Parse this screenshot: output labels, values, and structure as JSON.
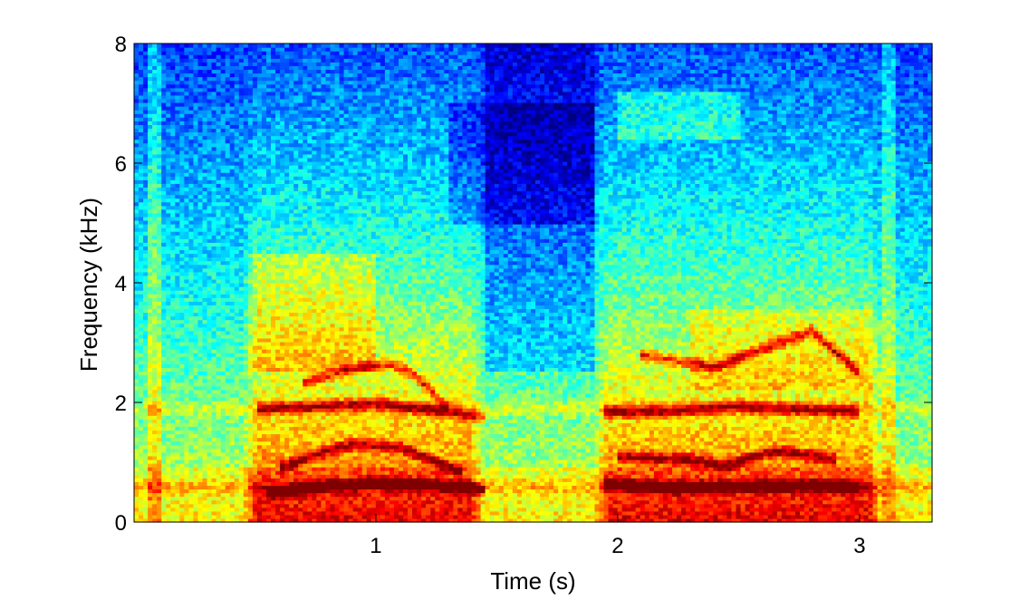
{
  "chart_data": {
    "type": "heatmap",
    "title": "",
    "xlabel": "Time (s)",
    "ylabel": "Frequency (kHz)",
    "xlim": [
      0,
      3.3
    ],
    "ylim": [
      0,
      8
    ],
    "x_ticks": [
      1,
      2,
      3
    ],
    "x_tick_labels": [
      "1",
      "2",
      "3"
    ],
    "y_ticks": [
      0,
      2,
      4,
      6,
      8
    ],
    "y_tick_labels": [
      "0",
      "2",
      "4",
      "6",
      "8"
    ],
    "colormap": "jet",
    "grid": false,
    "legend": "none",
    "voiced_segments_s": [
      [
        0.45,
        1.45
      ],
      [
        1.9,
        3.1
      ]
    ],
    "harmonic_tracks": [
      {
        "segment": 1,
        "points": [
          [
            0.55,
            0.48
          ],
          [
            0.8,
            0.6
          ],
          [
            1.0,
            0.68
          ],
          [
            1.2,
            0.64
          ],
          [
            1.45,
            0.55
          ]
        ]
      },
      {
        "segment": 1,
        "points": [
          [
            0.6,
            0.9
          ],
          [
            0.8,
            1.2
          ],
          [
            0.9,
            1.3
          ],
          [
            1.1,
            1.25
          ],
          [
            1.35,
            0.85
          ]
        ]
      },
      {
        "segment": 1,
        "points": [
          [
            0.5,
            1.9
          ],
          [
            0.8,
            1.95
          ],
          [
            1.0,
            2.0
          ],
          [
            1.2,
            1.9
          ],
          [
            1.45,
            1.75
          ]
        ]
      },
      {
        "segment": 1,
        "points": [
          [
            0.7,
            2.35
          ],
          [
            0.9,
            2.55
          ],
          [
            1.05,
            2.65
          ],
          [
            1.15,
            2.5
          ],
          [
            1.3,
            1.9
          ]
        ]
      },
      {
        "segment": 2,
        "points": [
          [
            1.95,
            0.65
          ],
          [
            2.2,
            0.58
          ],
          [
            2.5,
            0.6
          ],
          [
            2.7,
            0.62
          ],
          [
            3.0,
            0.58
          ]
        ]
      },
      {
        "segment": 2,
        "points": [
          [
            2.0,
            1.1
          ],
          [
            2.3,
            1.05
          ],
          [
            2.45,
            0.95
          ],
          [
            2.65,
            1.2
          ],
          [
            2.9,
            1.05
          ]
        ]
      },
      {
        "segment": 2,
        "points": [
          [
            1.95,
            1.85
          ],
          [
            2.2,
            1.85
          ],
          [
            2.5,
            1.95
          ],
          [
            2.7,
            1.9
          ],
          [
            3.0,
            1.85
          ]
        ]
      },
      {
        "segment": 2,
        "points": [
          [
            2.1,
            2.8
          ],
          [
            2.4,
            2.6
          ],
          [
            2.6,
            2.9
          ],
          [
            2.8,
            3.2
          ],
          [
            3.0,
            2.5
          ]
        ]
      }
    ],
    "constant_bands_khz": [
      0.6,
      1.9
    ]
  }
}
